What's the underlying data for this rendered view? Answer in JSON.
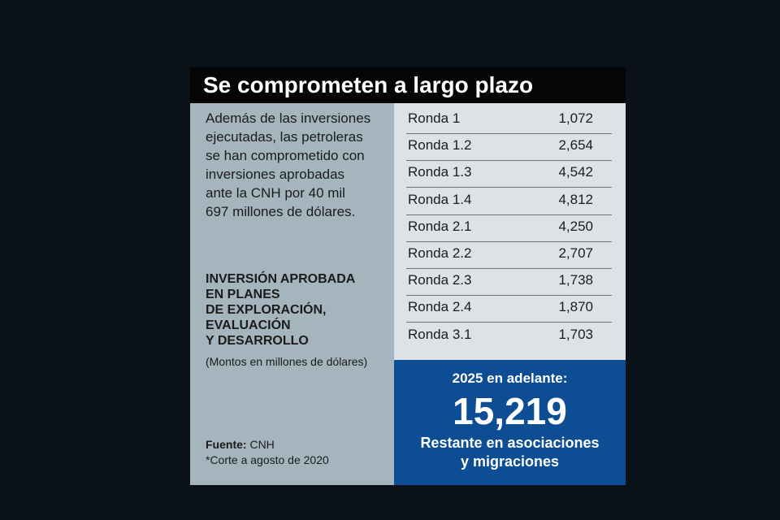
{
  "title": "Se comprometen a largo plazo",
  "intro": {
    "lines": [
      "Además de las inversiones",
      "ejecutadas, las petroleras",
      "se han comprometido con",
      "inversiones aprobadas",
      "ante la CNH por 40 mil",
      "697 millones de dólares."
    ]
  },
  "heading": {
    "lines": [
      "INVERSIÓN APROBADA",
      "EN PLANES",
      "DE EXPLORACIÓN,",
      "EVALUACIÓN",
      "Y DESARROLLO"
    ]
  },
  "note": "(Montos en millones de dólares)",
  "source": {
    "label": "Fuente:",
    "value": "CNH",
    "footnote": "*Corte a agosto de 2020"
  },
  "table": {
    "rows": [
      [
        "Ronda 1",
        "1,072"
      ],
      [
        "Ronda 1.2",
        "2,654"
      ],
      [
        "Ronda 1.3",
        "4,542"
      ],
      [
        "Ronda 1.4",
        "4,812"
      ],
      [
        "Ronda 2.1",
        "4,250"
      ],
      [
        "Ronda 2.2",
        "2,707"
      ],
      [
        "Ronda 2.3",
        "1,738"
      ],
      [
        "Ronda 2.4",
        "1,870"
      ],
      [
        "Ronda 3.1",
        "1,703"
      ]
    ]
  },
  "highlight": {
    "label": "2025 en adelante:",
    "value": "15,219",
    "caption": [
      "Restante en asociaciones",
      "y migraciones"
    ]
  }
}
